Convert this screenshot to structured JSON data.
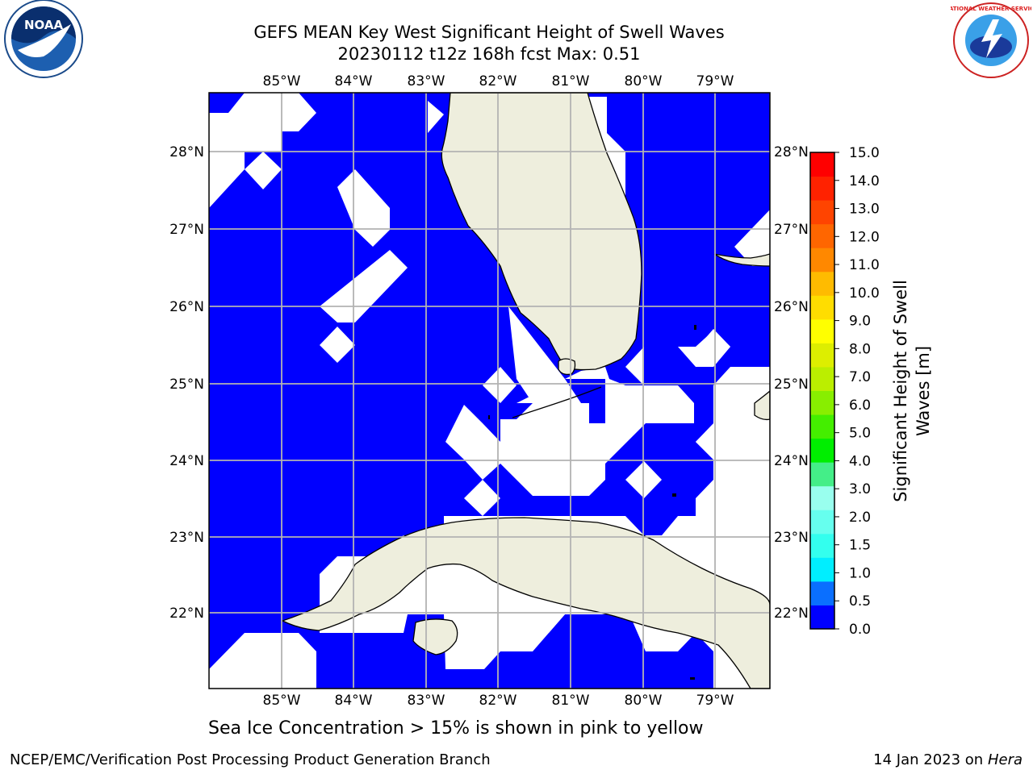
{
  "header": {
    "title_line1": "GEFS MEAN Key West Significant Height of Swell Waves",
    "title_line2": "20230112 t12z 168h fcst   Max: 0.51"
  },
  "map": {
    "lon_ticks": [
      "85°W",
      "84°W",
      "83°W",
      "82°W",
      "81°W",
      "80°W",
      "79°W"
    ],
    "lat_ticks": [
      "28°N",
      "27°N",
      "26°N",
      "25°N",
      "24°N",
      "23°N",
      "22°N"
    ],
    "colors": {
      "ocean": "#0000ff",
      "land": "#eeeedd",
      "grid": "#b3b3b3",
      "mask": "#ffffff"
    }
  },
  "colorbar": {
    "label_line1": "Significant Height of Swell",
    "label_line2": "Waves [m]",
    "ticks": [
      "0.0",
      "0.5",
      "1.0",
      "1.5",
      "2.0",
      "3.0",
      "4.0",
      "5.0",
      "6.0",
      "7.0",
      "8.0",
      "9.0",
      "10.0",
      "11.0",
      "12.0",
      "13.0",
      "14.0",
      "15.0"
    ],
    "colors": [
      "#0000ff",
      "#0a6fff",
      "#00eeff",
      "#33ffee",
      "#66ffee",
      "#99ffee",
      "#44ee88",
      "#00ee00",
      "#44ee00",
      "#88ee00",
      "#bbee00",
      "#ddee00",
      "#ffff00",
      "#ffdd00",
      "#ffbb00",
      "#ff8800",
      "#ff6600",
      "#ff4400",
      "#ff2200",
      "#ff0000"
    ]
  },
  "note": "Sea Ice Concentration > 15% is shown in pink to yellow",
  "footer": {
    "left": "NCEP/EMC/Verification Post Processing Product Generation Branch",
    "right_prefix": "14 Jan 2023 on ",
    "right_host": "Hera"
  },
  "logos": {
    "noaa_text": "NOAA",
    "nws_text": "NATIONAL WEATHER SERVICE"
  }
}
